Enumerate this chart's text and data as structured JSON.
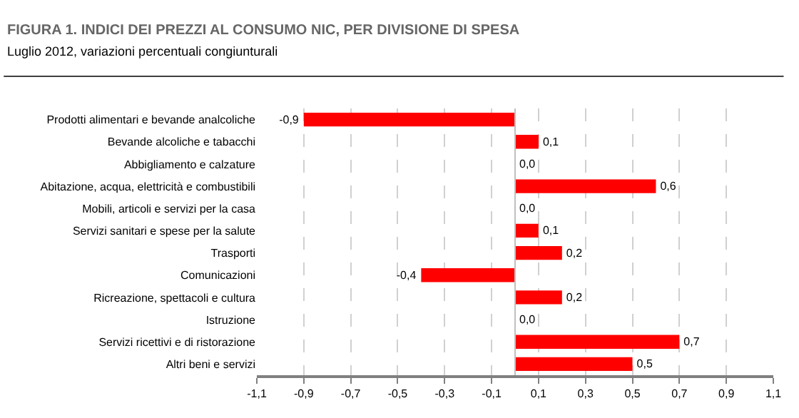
{
  "chart_data": {
    "type": "bar",
    "orientation": "horizontal",
    "title": "FIGURA 1. INDICI DEI PREZZI AL CONSUMO NIC, PER DIVISIONE DI SPESA",
    "subtitle": "Luglio 2012, variazioni percentuali congiunturali",
    "categories": [
      "Prodotti alimentari e bevande analcoliche",
      "Bevande alcoliche e tabacchi",
      "Abbigliamento e calzature",
      "Abitazione, acqua, elettricità e combustibili",
      "Mobili, articoli e servizi per la casa",
      "Servizi sanitari e spese per la salute",
      "Trasporti",
      "Comunicazioni",
      "Ricreazione, spettacoli e cultura",
      "Istruzione",
      "Servizi ricettivi e di ristorazione",
      "Altri beni e servizi"
    ],
    "values": [
      -0.9,
      0.1,
      0.0,
      0.6,
      0.0,
      0.1,
      0.2,
      -0.4,
      0.2,
      0.0,
      0.7,
      0.5
    ],
    "value_labels": [
      "-0,9",
      "0,1",
      "0,0",
      "0,6",
      "0,0",
      "0,1",
      "0,2",
      "-0,4",
      "0,2",
      "0,0",
      "0,7",
      "0,5"
    ],
    "color": "#ff0000",
    "xlim": [
      -1.1,
      1.1
    ],
    "xticks": [
      {
        "value": -1.1,
        "label": "-1,1"
      },
      {
        "value": -0.9,
        "label": "-0,9"
      },
      {
        "value": -0.7,
        "label": "-0,7"
      },
      {
        "value": -0.5,
        "label": "-0,5"
      },
      {
        "value": -0.3,
        "label": "-0,3"
      },
      {
        "value": -0.1,
        "label": "-0,1"
      },
      {
        "value": 0.1,
        "label": "0,1"
      },
      {
        "value": 0.3,
        "label": "0,3"
      },
      {
        "value": 0.5,
        "label": "0,5"
      },
      {
        "value": 0.7,
        "label": "0,7"
      },
      {
        "value": 0.9,
        "label": "0,9"
      },
      {
        "value": 1.1,
        "label": "1,1"
      }
    ],
    "grid": "x",
    "legend": false
  }
}
